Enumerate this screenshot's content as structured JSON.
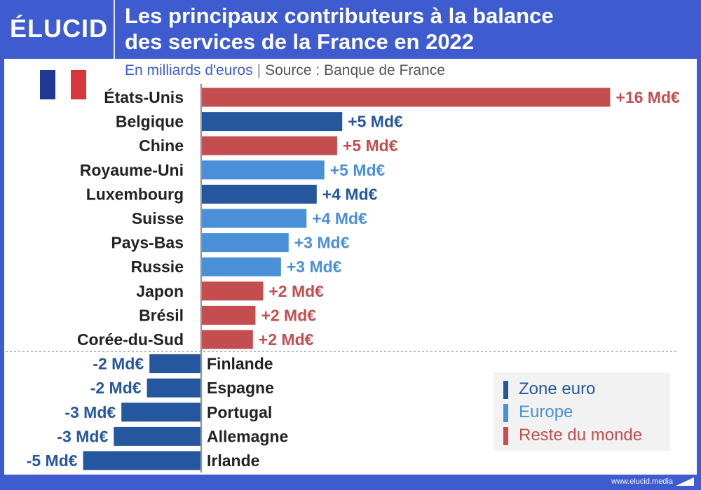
{
  "header": {
    "logo": "ÉLUCID",
    "title_line1": "Les principaux contributeurs à la balance",
    "title_line2": "des services de la France en 2022"
  },
  "subtitle": {
    "unit": "En milliards d'euros",
    "separator": "|",
    "source": "Source : Banque de France"
  },
  "footer": {
    "site": "www.elucid.media"
  },
  "legend": [
    {
      "label": "Zone euro",
      "color": "#24579e"
    },
    {
      "label": "Europe",
      "color": "#4a90d9"
    },
    {
      "label": "Reste du monde",
      "color": "#c44e4f"
    }
  ],
  "chart_data": {
    "type": "bar",
    "orientation": "horizontal",
    "unit": "Md€",
    "categories": [
      "États-Unis",
      "Belgique",
      "Chine",
      "Royaume-Uni",
      "Luxembourg",
      "Suisse",
      "Pays-Bas",
      "Russie",
      "Japon",
      "Brésil",
      "Corée-du-Sud",
      "Finlande",
      "Espagne",
      "Portugal",
      "Allemagne",
      "Irlande"
    ],
    "values": [
      16,
      5.5,
      5.3,
      4.8,
      4.5,
      4.1,
      3.4,
      3.1,
      2.4,
      2.1,
      2.0,
      -2.0,
      -2.1,
      -3.1,
      -3.4,
      -4.6
    ],
    "labels": [
      "+16 Md€",
      "+5 Md€",
      "+5 Md€",
      "+5 Md€",
      "+4 Md€",
      "+4 Md€",
      "+3 Md€",
      "+3 Md€",
      "+2 Md€",
      "+2 Md€",
      "+2 Md€",
      "-2 Md€",
      "-2 Md€",
      "-3 Md€",
      "-3 Md€",
      "-5 Md€"
    ],
    "groups": [
      "Reste du monde",
      "Zone euro",
      "Reste du monde",
      "Europe",
      "Zone euro",
      "Europe",
      "Europe",
      "Europe",
      "Reste du monde",
      "Reste du monde",
      "Reste du monde",
      "Zone euro",
      "Zone euro",
      "Zone euro",
      "Zone euro",
      "Zone euro"
    ],
    "colors": {
      "Zone euro": "#24579e",
      "Europe": "#4a90d9",
      "Reste du monde": "#c44e4f"
    }
  }
}
